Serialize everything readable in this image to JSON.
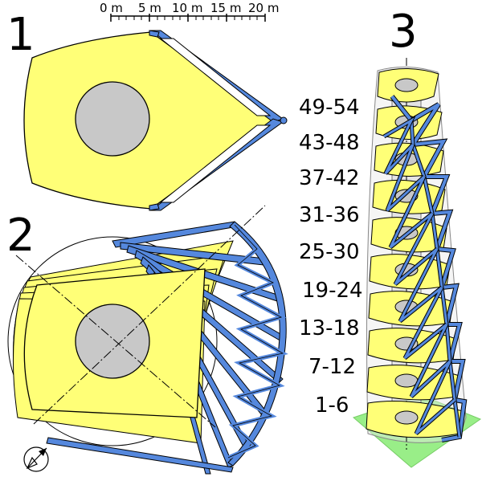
{
  "panels": [
    {
      "number": "1"
    },
    {
      "number": "2"
    },
    {
      "number": "3"
    }
  ],
  "scale_bar": {
    "labels": [
      "0 m",
      "5 m",
      "10 m",
      "15 m",
      "20 m"
    ]
  },
  "floor_ranges": [
    "49-54",
    "43-48",
    "37-42",
    "31-36",
    "25-30",
    "19-24",
    "13-18",
    "7-12",
    "1-6"
  ],
  "colors": {
    "floor_plate": "#ffff77",
    "core": "#c8c8c8",
    "steel": "#5588dd",
    "ground": "#99ee88",
    "outline": "#000000"
  },
  "icons": {
    "north_arrow": "north-arrow-icon"
  }
}
